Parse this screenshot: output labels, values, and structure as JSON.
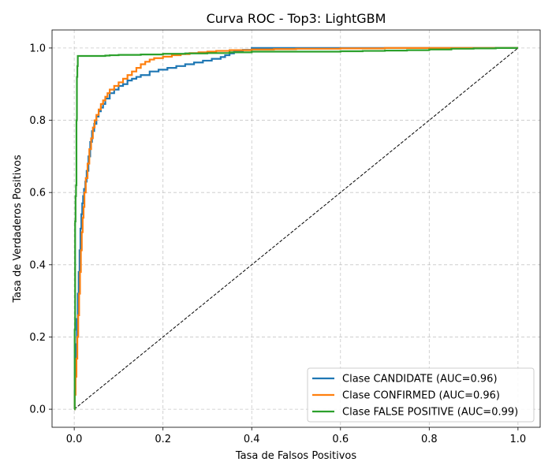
{
  "chart_data": {
    "type": "line",
    "title": "Curva ROC - Top3: LightGBM",
    "xlabel": "Tasa de Falsos Positivos",
    "ylabel": "Tasa de Verdaderos Positivos",
    "xlim": [
      -0.05,
      1.05
    ],
    "ylim": [
      -0.05,
      1.05
    ],
    "xticks": [
      "0.0",
      "0.2",
      "0.4",
      "0.6",
      "0.8",
      "1.0"
    ],
    "yticks": [
      "0.0",
      "0.2",
      "0.4",
      "0.6",
      "0.8",
      "1.0"
    ],
    "grid": true,
    "legend_position": "lower-right",
    "series": [
      {
        "name": "Clase CANDIDATE (AUC=0.96)",
        "color": "#1f77b4",
        "x": [
          0.0,
          0.001,
          0.002,
          0.004,
          0.006,
          0.008,
          0.01,
          0.012,
          0.014,
          0.016,
          0.018,
          0.02,
          0.022,
          0.025,
          0.028,
          0.032,
          0.036,
          0.04,
          0.045,
          0.05,
          0.055,
          0.06,
          0.065,
          0.07,
          0.08,
          0.09,
          0.1,
          0.11,
          0.12,
          0.13,
          0.14,
          0.15,
          0.17,
          0.19,
          0.21,
          0.23,
          0.25,
          0.27,
          0.29,
          0.31,
          0.33,
          0.34,
          0.35,
          0.36,
          0.38,
          0.4,
          0.45,
          0.5,
          0.6,
          0.7,
          0.8,
          0.9,
          1.0
        ],
        "y": [
          0.0,
          0.05,
          0.1,
          0.18,
          0.25,
          0.32,
          0.38,
          0.44,
          0.5,
          0.54,
          0.57,
          0.59,
          0.61,
          0.63,
          0.66,
          0.7,
          0.74,
          0.77,
          0.79,
          0.81,
          0.825,
          0.835,
          0.845,
          0.86,
          0.875,
          0.885,
          0.895,
          0.9,
          0.91,
          0.915,
          0.92,
          0.925,
          0.935,
          0.94,
          0.945,
          0.95,
          0.955,
          0.96,
          0.965,
          0.97,
          0.975,
          0.98,
          0.985,
          0.99,
          0.995,
          1.0,
          1.0,
          1.0,
          1.0,
          1.0,
          1.0,
          1.0,
          1.0
        ]
      },
      {
        "name": "Clase CONFIRMED (AUC=0.96)",
        "color": "#ff7f0e",
        "x": [
          0.0,
          0.001,
          0.003,
          0.005,
          0.007,
          0.009,
          0.011,
          0.013,
          0.015,
          0.017,
          0.019,
          0.021,
          0.023,
          0.026,
          0.03,
          0.034,
          0.038,
          0.042,
          0.046,
          0.05,
          0.055,
          0.06,
          0.065,
          0.07,
          0.075,
          0.08,
          0.09,
          0.1,
          0.11,
          0.12,
          0.13,
          0.14,
          0.15,
          0.16,
          0.17,
          0.18,
          0.2,
          0.22,
          0.24,
          0.26,
          0.28,
          0.3,
          0.32,
          0.35,
          0.4,
          0.45,
          0.5,
          0.6,
          0.7,
          0.8,
          0.9,
          1.0
        ],
        "y": [
          0.0,
          0.04,
          0.09,
          0.14,
          0.2,
          0.26,
          0.32,
          0.38,
          0.44,
          0.49,
          0.53,
          0.56,
          0.6,
          0.64,
          0.68,
          0.72,
          0.75,
          0.78,
          0.8,
          0.815,
          0.83,
          0.845,
          0.855,
          0.865,
          0.875,
          0.885,
          0.895,
          0.905,
          0.915,
          0.925,
          0.935,
          0.945,
          0.955,
          0.962,
          0.968,
          0.972,
          0.976,
          0.98,
          0.983,
          0.986,
          0.988,
          0.99,
          0.992,
          0.994,
          0.996,
          0.997,
          0.998,
          0.999,
          1.0,
          1.0,
          1.0,
          1.0
        ]
      },
      {
        "name": "Clase FALSE POSITIVE (AUC=0.99)",
        "color": "#2ca02c",
        "x": [
          0.0,
          0.001,
          0.002,
          0.003,
          0.004,
          0.005,
          0.006,
          0.007,
          0.008,
          0.01,
          0.015,
          0.02,
          0.03,
          0.04,
          0.05,
          0.06,
          0.07,
          0.08,
          0.1,
          0.15,
          0.2,
          0.25,
          0.3,
          0.35,
          0.4,
          0.45,
          0.5,
          0.55,
          0.6,
          0.65,
          0.7,
          0.75,
          0.8,
          0.85,
          0.9,
          0.95,
          1.0
        ],
        "y": [
          0.0,
          0.22,
          0.52,
          0.59,
          0.62,
          0.8,
          0.92,
          0.95,
          0.978,
          0.978,
          0.978,
          0.978,
          0.978,
          0.978,
          0.978,
          0.978,
          0.979,
          0.98,
          0.981,
          0.982,
          0.984,
          0.985,
          0.986,
          0.988,
          0.99,
          0.99,
          0.99,
          0.99,
          0.991,
          0.992,
          0.993,
          0.994,
          0.996,
          0.998,
          0.999,
          1.0,
          1.0
        ]
      }
    ],
    "reference_line": {
      "x": [
        0,
        1
      ],
      "y": [
        0,
        1
      ],
      "style": "dashed",
      "color": "#000000"
    }
  }
}
